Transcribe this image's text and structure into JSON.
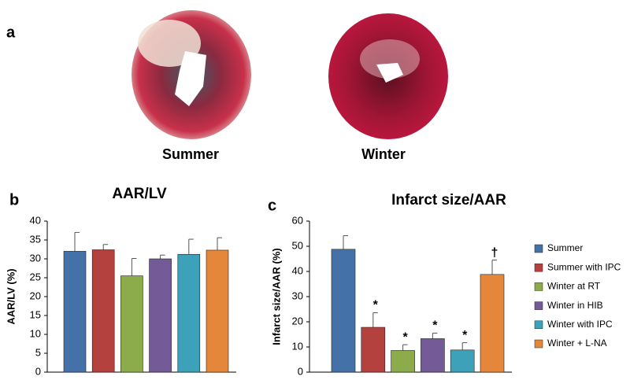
{
  "panel_a": {
    "label": "a",
    "images": [
      "Summer",
      "Winter"
    ]
  },
  "legend": {
    "labels": [
      "Summer",
      "Summer with IPC",
      "Winter at RT",
      "Winter in HIB",
      "Winter with IPC",
      "Winter + L-NA"
    ],
    "colors": [
      "#4472a8",
      "#b5413f",
      "#8cab4b",
      "#745a97",
      "#3ea1ba",
      "#e5873a"
    ]
  },
  "chart_data": [
    {
      "type": "bar",
      "panel": "b",
      "title": "AAR/LV",
      "y_label": "AAR/LV (%)",
      "values": [
        32,
        32.4,
        25.5,
        30,
        31.2,
        32.3
      ],
      "errors": [
        5,
        1.4,
        4.6,
        1,
        4,
        3.3
      ],
      "ylim": [
        0,
        40
      ],
      "yticks": [
        0,
        5,
        10,
        15,
        20,
        25,
        30,
        35,
        40
      ]
    },
    {
      "type": "bar",
      "panel": "c",
      "title": "Infarct size/AAR",
      "y_label": "Infarct size/AAR (%)",
      "values": [
        48.8,
        17.8,
        8.6,
        13.3,
        8.8,
        38.8
      ],
      "errors": [
        5.4,
        5.8,
        2.3,
        2.2,
        2.9,
        5.7
      ],
      "annotations": [
        null,
        "*",
        "*",
        "*",
        "*",
        "†"
      ],
      "ylim": [
        0,
        60
      ],
      "yticks": [
        0,
        10,
        20,
        30,
        40,
        50,
        60
      ]
    }
  ]
}
